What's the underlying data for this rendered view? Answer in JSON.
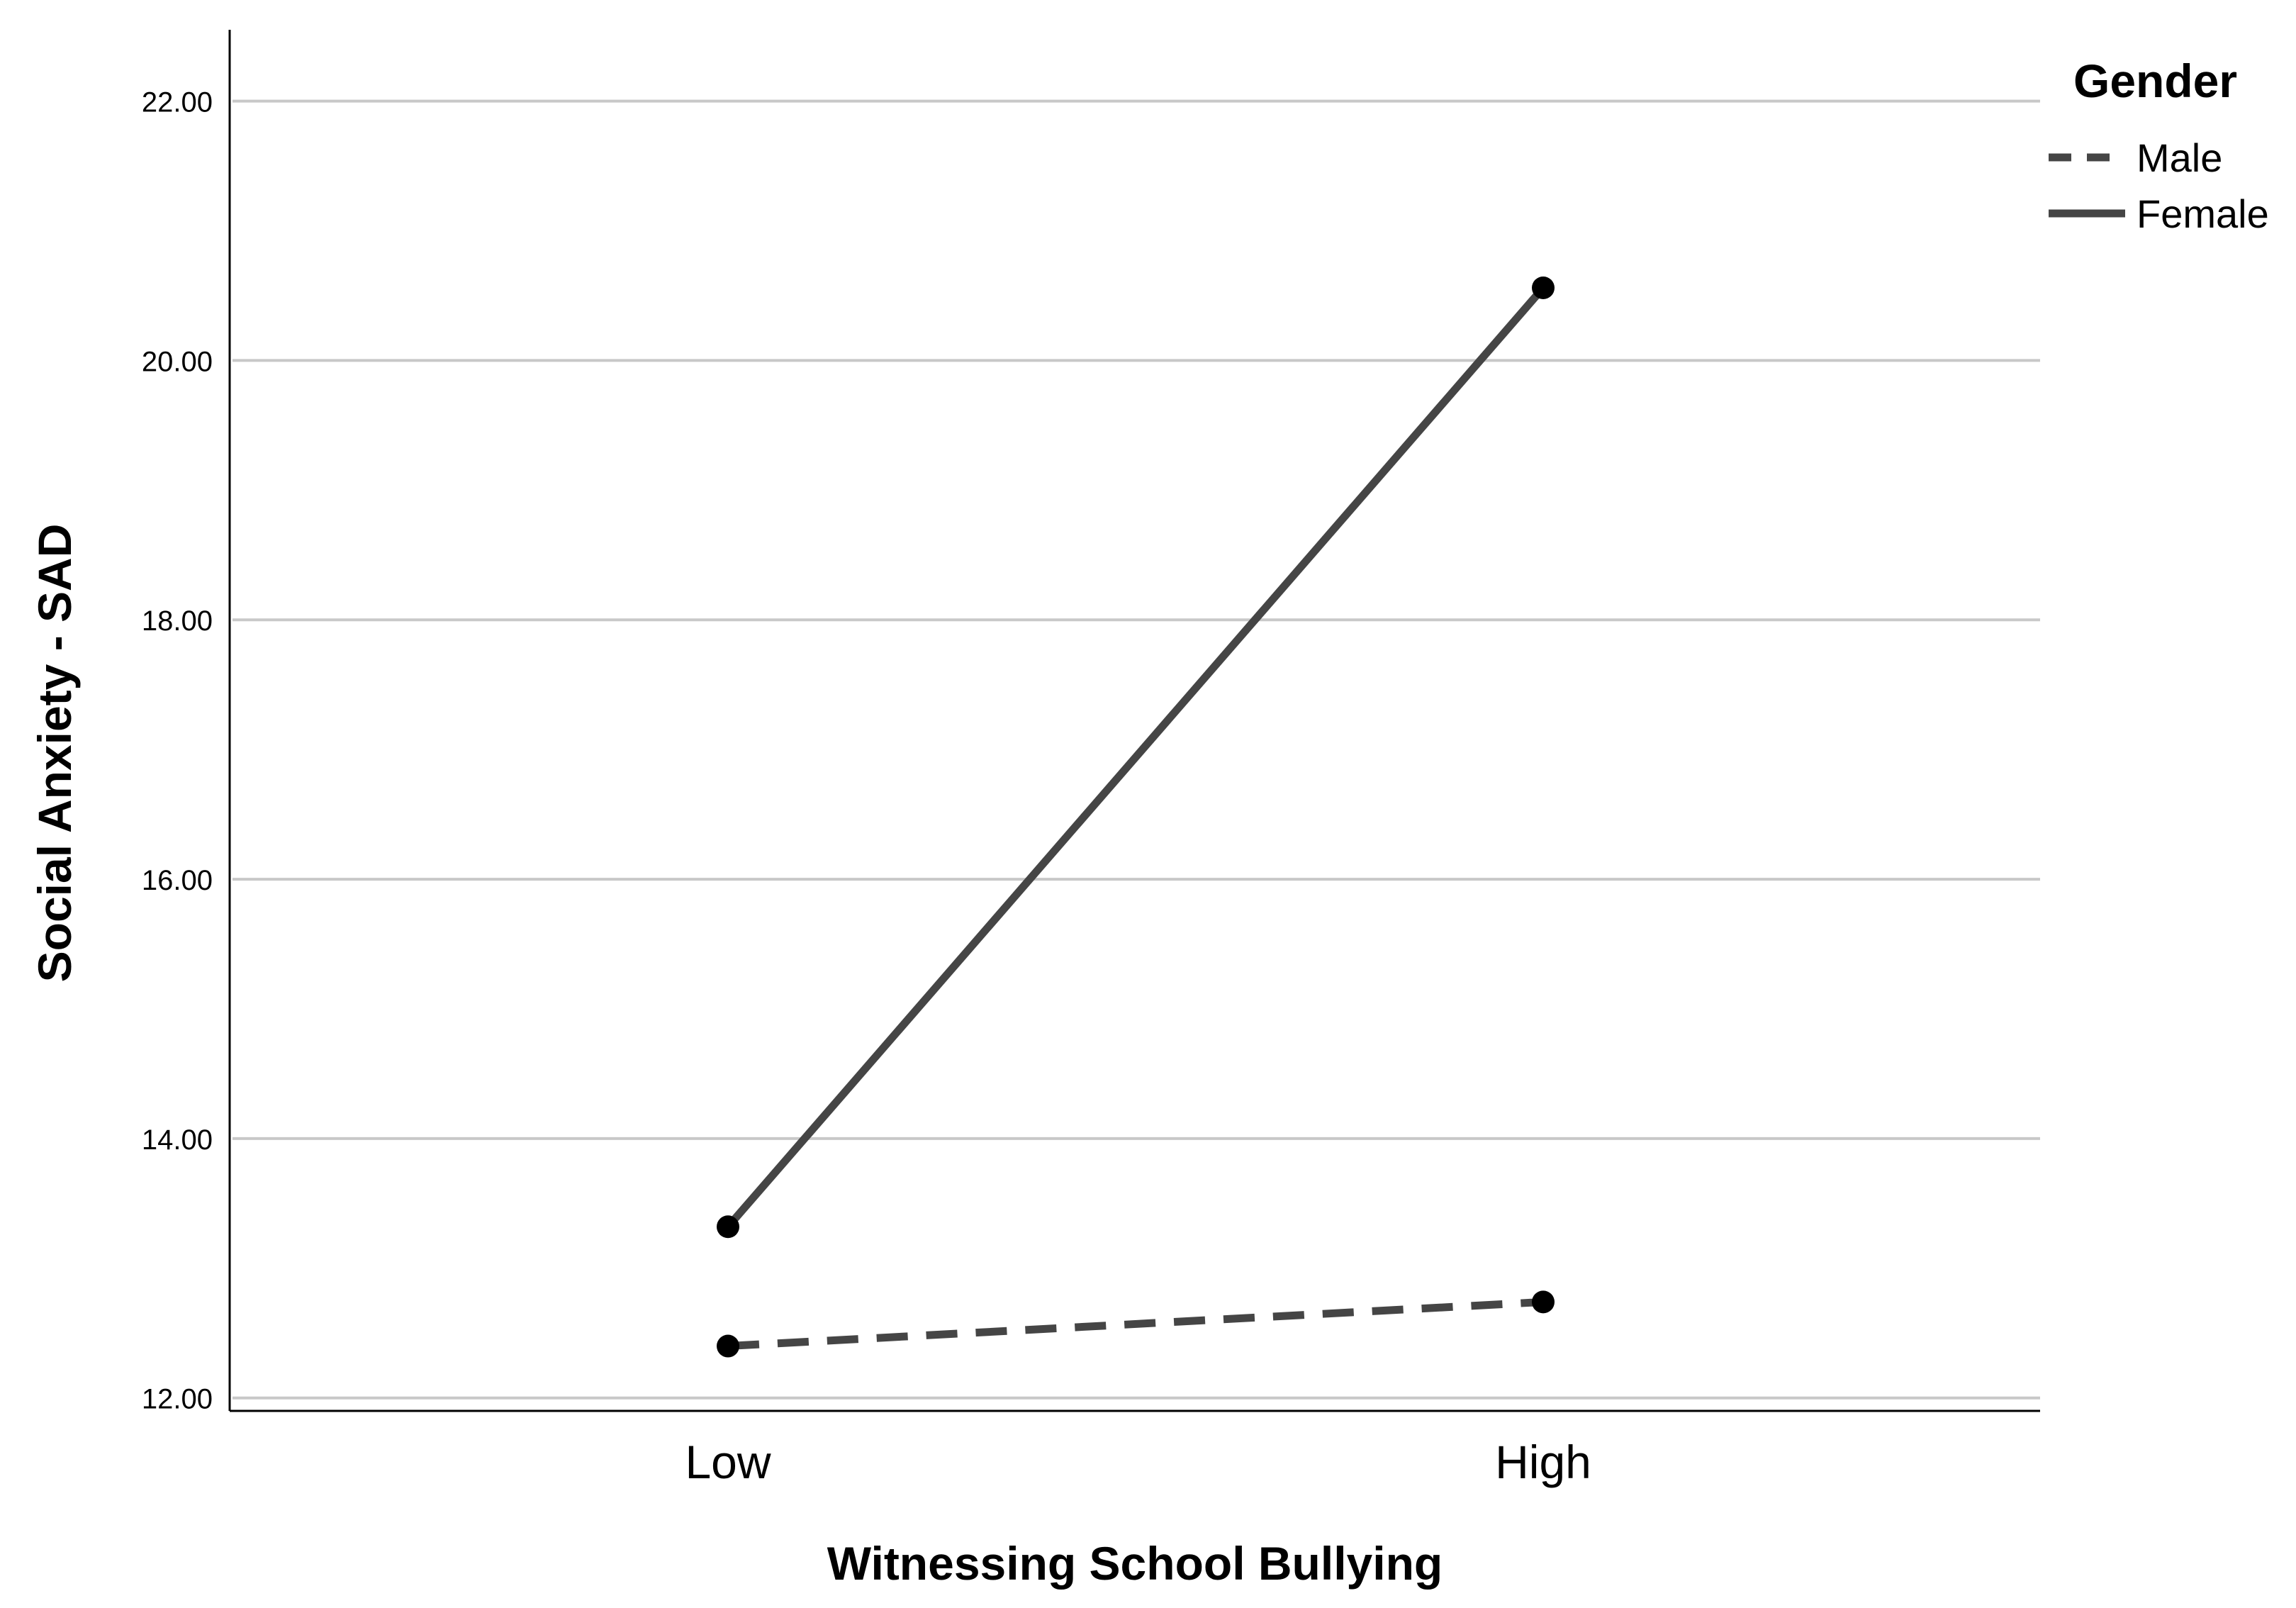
{
  "chart_data": {
    "type": "line",
    "categories": [
      "Low",
      "High"
    ],
    "series": [
      {
        "name": "Male",
        "values": [
          12.4,
          12.74
        ],
        "style": "dashed",
        "color": "#454545"
      },
      {
        "name": "Female",
        "values": [
          13.32,
          20.56
        ],
        "style": "solid",
        "color": "#454545"
      }
    ],
    "xlabel": "Witnessing School Bullying",
    "ylabel": "Social Anxiety - SAD",
    "ylim": [
      11.9,
      22.55
    ],
    "yticks": [
      {
        "value": 12,
        "label": "12.00"
      },
      {
        "value": 14,
        "label": "14.00"
      },
      {
        "value": 16,
        "label": "16.00"
      },
      {
        "value": 18,
        "label": "18.00"
      },
      {
        "value": 20,
        "label": "20.00"
      },
      {
        "value": 22,
        "label": "22.00"
      }
    ],
    "grid": true,
    "legend": {
      "title": "Gender",
      "position": "top-right"
    },
    "colors": {
      "gridline": "#c8c8c8",
      "axis": "#000000",
      "marker": "#000000"
    }
  }
}
